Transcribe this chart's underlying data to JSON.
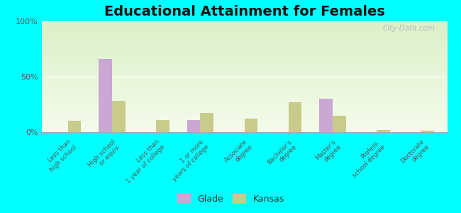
{
  "title": "Educational Attainment for Females",
  "categories": [
    "Less than\nhigh school",
    "High school\nor equiv.",
    "Less than\n1 year of college",
    "1 or more\nyears of college",
    "Associate\ndegree",
    "Bachelor's\ndegree",
    "Master's\ndegree",
    "Profess.\nschool degree",
    "Doctorate\ndegree"
  ],
  "glade_values": [
    0,
    66,
    0,
    11,
    0,
    0,
    30,
    0,
    0
  ],
  "kansas_values": [
    10,
    28,
    11,
    17,
    12,
    27,
    15,
    2,
    1
  ],
  "glade_color": "#c9a8d4",
  "kansas_color": "#c8cc8a",
  "ylim": [
    0,
    100
  ],
  "yticks": [
    0,
    50,
    100
  ],
  "ytick_labels": [
    "0%",
    "50%",
    "100%"
  ],
  "bg_color": "#00ffff",
  "title_fontsize": 14,
  "bar_width": 0.3,
  "legend_labels": [
    "Glade",
    "Kansas"
  ]
}
